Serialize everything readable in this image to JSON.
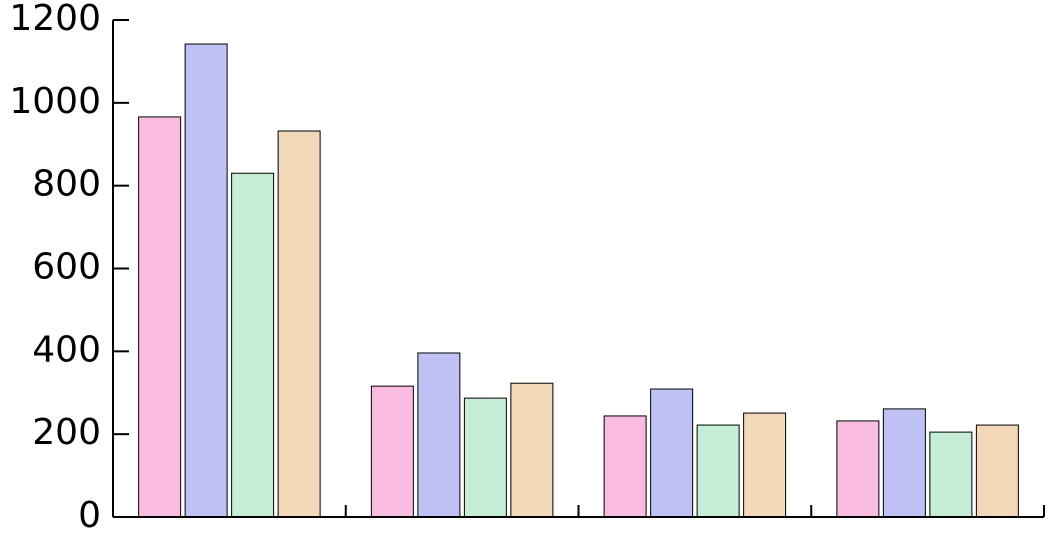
{
  "chart_data": {
    "type": "bar",
    "categories": [
      null,
      null,
      null,
      null
    ],
    "series": [
      {
        "color": "#f9bbdf",
        "values": [
          966,
          316,
          244,
          232
        ]
      },
      {
        "color": "#c0c2f5",
        "values": [
          1142,
          396,
          309,
          261
        ]
      },
      {
        "color": "#c6eed6",
        "values": [
          830,
          287,
          222,
          205
        ]
      },
      {
        "color": "#f2d7b8",
        "values": [
          932,
          323,
          251,
          222
        ]
      }
    ],
    "ylim": [
      0,
      1200
    ],
    "yticks": [
      0,
      200,
      400,
      600,
      800,
      1000,
      1200
    ]
  }
}
